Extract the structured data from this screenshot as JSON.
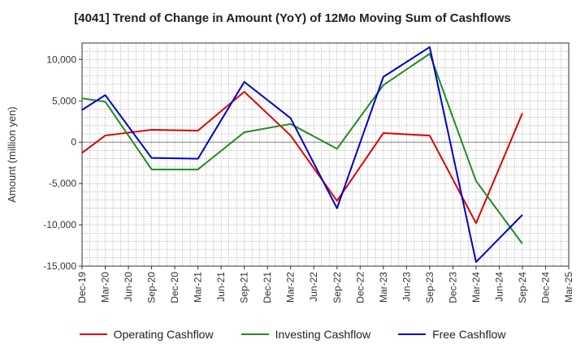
{
  "chart_data": {
    "type": "line",
    "title": "[4041]  Trend of Change in Amount (YoY) of 12Mo Moving Sum of Cashflows",
    "xlabel": "",
    "ylabel": "Amount (million yen)",
    "ylim": [
      -15000,
      12000
    ],
    "yticks": [
      -15000,
      -10000,
      -5000,
      0,
      5000,
      10000
    ],
    "ytick_labels": [
      "-15,000",
      "-10,000",
      "-5,000",
      "0",
      "5,000",
      "10,000"
    ],
    "categories": [
      "Dec-19",
      "Mar-20",
      "Jun-20",
      "Sep-20",
      "Dec-20",
      "Mar-21",
      "Jun-21",
      "Sep-21",
      "Dec-21",
      "Mar-22",
      "Jun-22",
      "Sep-22",
      "Dec-22",
      "Mar-23",
      "Jun-23",
      "Sep-23",
      "Dec-23",
      "Mar-24",
      "Jun-24",
      "Sep-24",
      "Dec-24",
      "Mar-25"
    ],
    "grid": true,
    "legend_position": "bottom",
    "series": [
      {
        "name": "Operating Cashflow",
        "color": "#e00000",
        "values": [
          -1300,
          800,
          null,
          1500,
          null,
          1400,
          null,
          6100,
          null,
          800,
          null,
          -7100,
          null,
          1100,
          null,
          800,
          null,
          -9800,
          null,
          3500,
          null,
          null
        ]
      },
      {
        "name": "Investing Cashflow",
        "color": "#228b22",
        "values": [
          5300,
          4900,
          null,
          -3300,
          null,
          -3300,
          null,
          1200,
          null,
          2200,
          null,
          -800,
          null,
          6900,
          null,
          10700,
          null,
          -4700,
          null,
          -12300,
          null,
          null
        ]
      },
      {
        "name": "Free Cashflow",
        "color": "#0000cc",
        "values": [
          3900,
          5700,
          null,
          -1900,
          null,
          -2000,
          null,
          7300,
          null,
          2900,
          null,
          -8000,
          null,
          7900,
          null,
          11500,
          null,
          -14500,
          null,
          -8800,
          null,
          null
        ]
      }
    ]
  }
}
